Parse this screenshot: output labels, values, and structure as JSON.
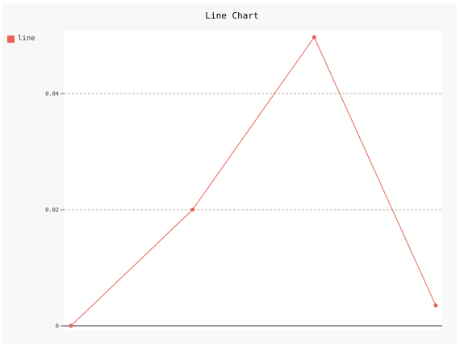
{
  "colors": {
    "series": "#e8625c",
    "grid": "#999999",
    "axis": "#333333"
  },
  "chart_data": {
    "type": "line",
    "title": "Line Chart",
    "legend": {
      "placement": "top-left",
      "entries": [
        "line"
      ]
    },
    "grid": true,
    "ylim": [
      0,
      0.05
    ],
    "yticks": [
      0,
      0.02,
      0.04
    ],
    "ytick_labels": [
      "0",
      "0.02",
      "0.04"
    ],
    "series": [
      {
        "name": "line",
        "x": [
          0,
          1,
          2,
          3
        ],
        "values": [
          0,
          0.02,
          0.0497,
          0.0035
        ]
      }
    ]
  }
}
